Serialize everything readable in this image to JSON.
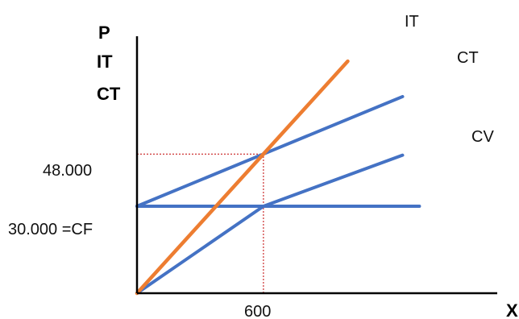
{
  "chart_data": {
    "type": "line",
    "title": "",
    "ylabel": [
      "P",
      "IT",
      "CT"
    ],
    "xlabel": "X",
    "x_ticks": [
      "600"
    ],
    "y_ticks": [
      "48.000",
      "30.000  =CF"
    ],
    "colors": {
      "IT": "#ED7D31",
      "CT": "#4472C4",
      "CV": "#4472C4",
      "CF": "#4472C4",
      "guide": "#C00000",
      "axis": "#000000"
    },
    "series": [
      {
        "name": "IT",
        "x": [
          0,
          600,
          1000
        ],
        "y": [
          0,
          48000,
          80000
        ]
      },
      {
        "name": "CT",
        "x": [
          0,
          600,
          1260
        ],
        "y": [
          30000,
          48000,
          67800
        ]
      },
      {
        "name": "CV",
        "x": [
          0,
          600,
          1260
        ],
        "y": [
          0,
          30000,
          47600
        ]
      },
      {
        "name": "CF",
        "x": [
          0,
          1340
        ],
        "y": [
          30000,
          30000
        ]
      }
    ],
    "reference_lines": [
      {
        "type": "horizontal",
        "y": 48000,
        "from_x": 0,
        "to_x": 600
      },
      {
        "type": "vertical",
        "x": 600,
        "from_y": 0,
        "to_y": 48000
      }
    ]
  }
}
